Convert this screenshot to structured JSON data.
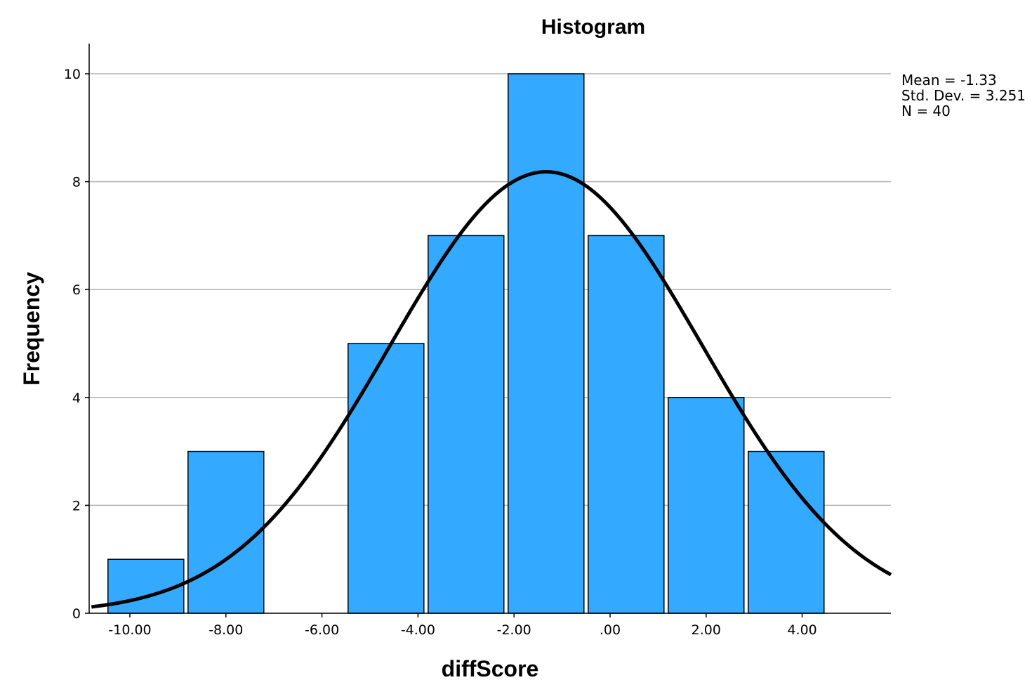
{
  "chart_data": {
    "type": "bar",
    "title": "Histogram",
    "xlabel": "diffScore",
    "ylabel": "Frequency",
    "bins": [
      {
        "start": -10.5,
        "end": -8.833,
        "count": 1
      },
      {
        "start": -8.833,
        "end": -7.167,
        "count": 3
      },
      {
        "start": -7.167,
        "end": -5.5,
        "count": 0
      },
      {
        "start": -5.5,
        "end": -3.833,
        "count": 5
      },
      {
        "start": -3.833,
        "end": -2.167,
        "count": 7
      },
      {
        "start": -2.167,
        "end": -0.5,
        "count": 10
      },
      {
        "start": -0.5,
        "end": 1.167,
        "count": 7
      },
      {
        "start": 1.167,
        "end": 2.833,
        "count": 4
      },
      {
        "start": 2.833,
        "end": 4.5,
        "count": 3
      }
    ],
    "x_ticks": [
      {
        "value": -10,
        "label": "-10.00"
      },
      {
        "value": -8,
        "label": "-8.00"
      },
      {
        "value": -6,
        "label": "-6.00"
      },
      {
        "value": -4,
        "label": "-4.00"
      },
      {
        "value": -2,
        "label": "-2.00"
      },
      {
        "value": 0,
        "label": ".00"
      },
      {
        "value": 2,
        "label": "2.00"
      },
      {
        "value": 4,
        "label": "4.00"
      }
    ],
    "y_ticks": [
      {
        "value": 0,
        "label": "0"
      },
      {
        "value": 2,
        "label": "2"
      },
      {
        "value": 4,
        "label": "4"
      },
      {
        "value": 6,
        "label": "6"
      },
      {
        "value": 8,
        "label": "8"
      },
      {
        "value": 10,
        "label": "10"
      }
    ],
    "xlim": [
      -10.8,
      5.8
    ],
    "ylim": [
      0,
      10.6
    ],
    "grid": "horizontal",
    "normal_curve": {
      "mean": -1.33,
      "sd": 3.251,
      "n": 40,
      "bin_width": 1.667
    },
    "stats": {
      "mean": "Mean = -1.33",
      "std_dev": "Std. Dev. = 3.251",
      "n": "N = 40"
    },
    "colors": {
      "bar_fill": "#33aaff",
      "bar_stroke": "#000000",
      "curve": "#000000",
      "grid": "#b3b3b3",
      "axis": "#000000"
    }
  }
}
